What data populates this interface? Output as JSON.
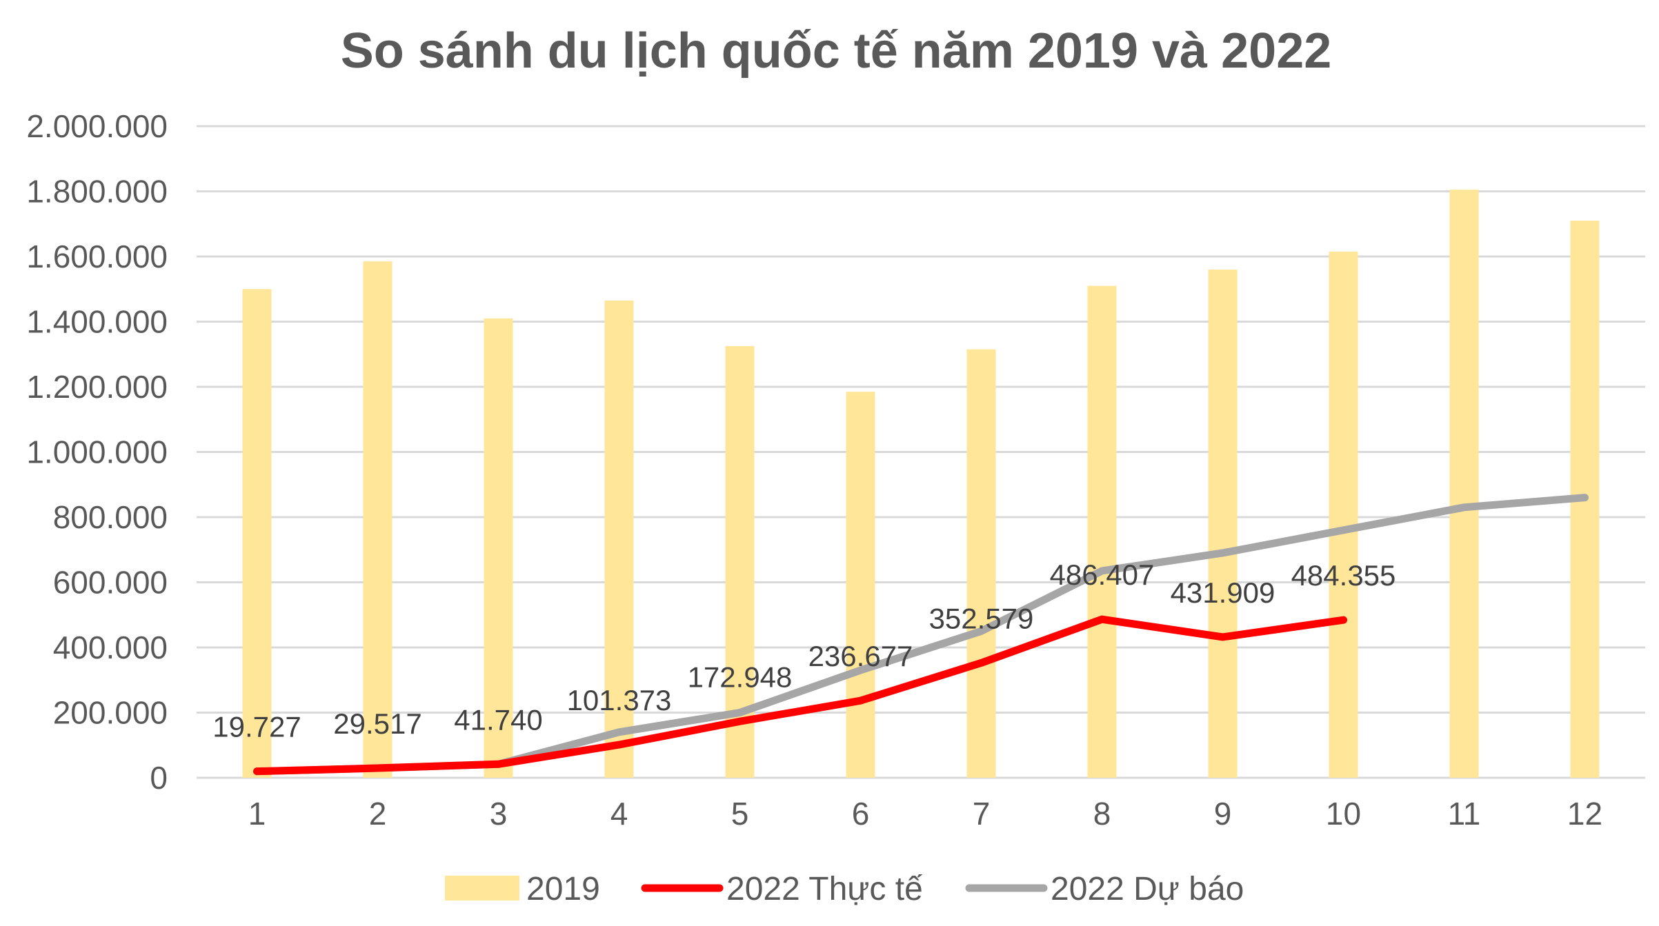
{
  "chart_data": {
    "type": "bar",
    "title": "So sánh du lịch quốc tế năm 2019 và 2022",
    "xlabel": "",
    "ylabel": "",
    "categories": [
      "1",
      "2",
      "3",
      "4",
      "5",
      "6",
      "7",
      "8",
      "9",
      "10",
      "11",
      "12"
    ],
    "ylim": [
      0,
      2000000
    ],
    "yticks": [
      0,
      200000,
      400000,
      600000,
      800000,
      1000000,
      1200000,
      1400000,
      1600000,
      1800000,
      2000000
    ],
    "ytick_labels": [
      "0",
      "200.000",
      "400.000",
      "600.000",
      "800.000",
      "1.000.000",
      "1.200.000",
      "1.400.000",
      "1.600.000",
      "1.800.000",
      "2.000.000"
    ],
    "grid": true,
    "legend_position": "bottom",
    "series": [
      {
        "name": "2019",
        "type": "bar",
        "color": "#ffe699",
        "values": [
          1500000,
          1585000,
          1410000,
          1465000,
          1325000,
          1185000,
          1315000,
          1510000,
          1560000,
          1615000,
          1805000,
          1710000
        ]
      },
      {
        "name": "2022 Thực tế",
        "type": "line",
        "color": "#ff0000",
        "values": [
          19727,
          29517,
          41740,
          101373,
          172948,
          236677,
          352579,
          486407,
          431909,
          484355,
          null,
          null
        ],
        "data_labels": [
          "19.727",
          "29.517",
          "41.740",
          "101.373",
          "172.948",
          "236.677",
          "352.579",
          "486.407",
          "431.909",
          "484.355"
        ]
      },
      {
        "name": "2022 Dự báo",
        "type": "line",
        "color": "#a6a6a6",
        "values": [
          19727,
          29517,
          41740,
          140000,
          200000,
          330000,
          450000,
          635000,
          690000,
          760000,
          830000,
          860000
        ]
      }
    ]
  }
}
